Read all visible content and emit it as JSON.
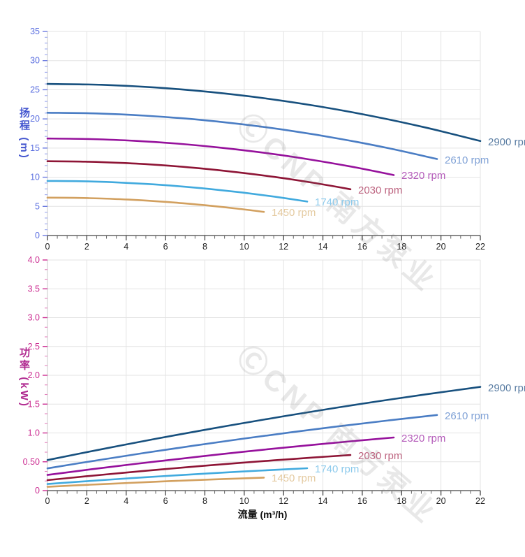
{
  "watermark": {
    "text": "ⒸCNP 南方泵业"
  },
  "chart_data": [
    {
      "type": "line",
      "ylabel": "扬程 (m)",
      "xlabel": "流量 (m³/h)",
      "xlim": [
        0,
        22
      ],
      "ylim": [
        0,
        35
      ],
      "grid": true,
      "legend_position": "curve-end-labels",
      "xticks": {
        "values": [
          0,
          2,
          4,
          6,
          8,
          10,
          12,
          14,
          16,
          18,
          20,
          22
        ],
        "labels": [
          "0",
          "2",
          "4",
          "6",
          "8",
          "10",
          "12",
          "14",
          "16",
          "18",
          "20",
          "22"
        ]
      },
      "yticks": {
        "values": [
          0,
          5,
          10,
          15,
          20,
          25,
          30,
          35
        ],
        "labels": [
          "0",
          "5",
          "10",
          "15",
          "20",
          "25",
          "30",
          "35"
        ]
      },
      "axis_label_color": "#5b6fe0",
      "series": [
        {
          "label": "2900 rpm",
          "color": "#17507e",
          "label_color": "#5a7da3",
          "x": [
            0,
            2.75,
            5.5,
            8.25,
            11,
            13.75,
            16.5,
            19.25,
            22
          ],
          "y": [
            26,
            25.85,
            25.39,
            24.62,
            23.55,
            22.17,
            20.49,
            18.5,
            16.2
          ]
        },
        {
          "label": "2610 rpm",
          "color": "#4a7dc4",
          "label_color": "#7fa1d6",
          "x": [
            0,
            2.48,
            4.95,
            7.43,
            9.9,
            12.38,
            14.85,
            17.33,
            19.8
          ],
          "y": [
            21.06,
            20.94,
            20.56,
            19.94,
            19.08,
            17.96,
            16.59,
            14.98,
            13.12
          ]
        },
        {
          "label": "2320 rpm",
          "color": "#96119c",
          "label_color": "#b45cba",
          "x": [
            0,
            2.2,
            4.4,
            6.6,
            8.8,
            11,
            13.2,
            15.4,
            17.6
          ],
          "y": [
            16.64,
            16.54,
            16.25,
            15.76,
            15.07,
            14.19,
            13.11,
            11.84,
            10.37
          ]
        },
        {
          "label": "2030 rpm",
          "color": "#8e1536",
          "label_color": "#bd6480",
          "x": [
            0,
            1.93,
            3.85,
            5.78,
            7.7,
            9.63,
            11.55,
            13.48,
            15.4
          ],
          "y": [
            12.74,
            12.67,
            12.44,
            12.07,
            11.54,
            10.86,
            10.04,
            9.06,
            7.94
          ]
        },
        {
          "label": "1740 rpm",
          "color": "#41aade",
          "label_color": "#8ccaec",
          "x": [
            0,
            1.65,
            3.3,
            4.95,
            6.6,
            8.25,
            9.9,
            11.55,
            13.2
          ],
          "y": [
            9.36,
            9.31,
            9.14,
            8.86,
            8.48,
            7.98,
            7.38,
            6.66,
            5.83
          ]
        },
        {
          "label": "1450 rpm",
          "color": "#d2a05f",
          "label_color": "#e4caa0",
          "x": [
            0,
            1.38,
            2.75,
            4.13,
            5.5,
            6.88,
            8.25,
            9.63,
            11
          ],
          "y": [
            6.5,
            6.46,
            6.35,
            6.16,
            5.89,
            5.54,
            5.12,
            4.62,
            4.05
          ]
        }
      ]
    },
    {
      "type": "line",
      "ylabel": "功率 (kW)",
      "xlabel": "流量 (m³/h)",
      "xlim": [
        0,
        22
      ],
      "ylim": [
        0,
        4
      ],
      "grid": true,
      "legend_position": "curve-end-labels",
      "xticks": {
        "values": [
          0,
          2,
          4,
          6,
          8,
          10,
          12,
          14,
          16,
          18,
          20,
          22
        ],
        "labels": [
          "0",
          "2",
          "4",
          "6",
          "8",
          "10",
          "12",
          "14",
          "16",
          "18",
          "20",
          "22"
        ]
      },
      "yticks": {
        "values": [
          0,
          0.5,
          1,
          1.5,
          2,
          2.5,
          3,
          3.5,
          4
        ],
        "labels": [
          "0",
          "0.50",
          "1.0",
          "1.5",
          "2.0",
          "2.5",
          "3.0",
          "3.5",
          "4.0"
        ]
      },
      "axis_label_color": "#cc2e92",
      "series": [
        {
          "label": "2900 rpm",
          "color": "#17507e",
          "label_color": "#5a7da3",
          "x": [
            0,
            2.75,
            5.5,
            8.25,
            11,
            13.75,
            16.5,
            19.25,
            22
          ],
          "y": [
            0.53,
            0.718,
            0.898,
            1.069,
            1.232,
            1.387,
            1.533,
            1.67,
            1.799
          ]
        },
        {
          "label": "2610 rpm",
          "color": "#4a7dc4",
          "label_color": "#7fa1d6",
          "x": [
            0,
            2.48,
            4.95,
            7.43,
            9.9,
            12.38,
            14.85,
            17.33,
            19.8
          ],
          "y": [
            0.386,
            0.523,
            0.654,
            0.779,
            0.898,
            1.011,
            1.117,
            1.217,
            1.311
          ]
        },
        {
          "label": "2320 rpm",
          "color": "#96119c",
          "label_color": "#b45cba",
          "x": [
            0,
            2.2,
            4.4,
            6.6,
            8.8,
            11,
            13.2,
            15.4,
            17.6
          ],
          "y": [
            0.271,
            0.368,
            0.46,
            0.547,
            0.631,
            0.71,
            0.784,
            0.855,
            0.921
          ]
        },
        {
          "label": "2030 rpm",
          "color": "#8e1536",
          "label_color": "#bd6480",
          "x": [
            0,
            1.93,
            3.85,
            5.78,
            7.7,
            9.63,
            11.55,
            13.48,
            15.4
          ],
          "y": [
            0.182,
            0.247,
            0.308,
            0.367,
            0.423,
            0.476,
            0.526,
            0.573,
            0.617
          ]
        },
        {
          "label": "1740 rpm",
          "color": "#41aade",
          "label_color": "#8ccaec",
          "x": [
            0,
            1.65,
            3.3,
            4.95,
            6.6,
            8.25,
            9.9,
            11.55,
            13.2
          ],
          "y": [
            0.114,
            0.155,
            0.194,
            0.231,
            0.266,
            0.299,
            0.331,
            0.36,
            0.388
          ]
        },
        {
          "label": "1450 rpm",
          "color": "#d2a05f",
          "label_color": "#e4caa0",
          "x": [
            0,
            1.38,
            2.75,
            4.13,
            5.5,
            6.88,
            8.25,
            9.63,
            11
          ],
          "y": [
            0.066,
            0.09,
            0.112,
            0.133,
            0.154,
            0.173,
            0.191,
            0.209,
            0.225
          ]
        }
      ]
    }
  ]
}
